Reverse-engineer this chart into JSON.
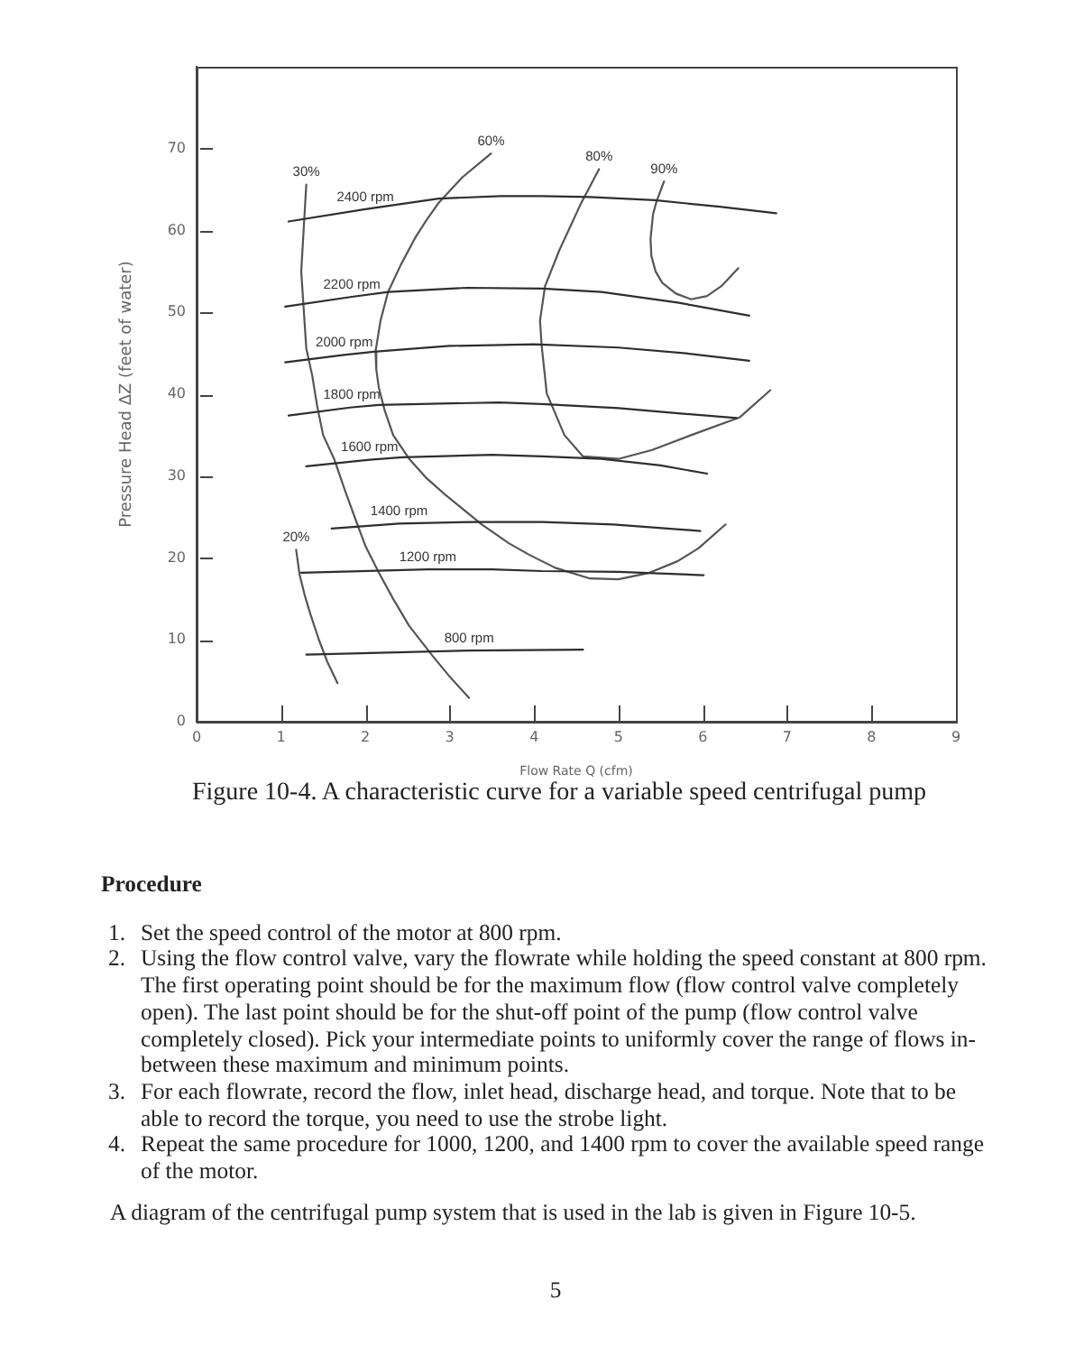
{
  "chart_data": {
    "type": "line",
    "title": "Figure 10-4. A characteristic curve for a variable speed centrifugal pump",
    "xlabel": "Flow Rate Q (cfm)",
    "ylabel": "Pressure Head ΔZ (feet of water)",
    "xlim": [
      0,
      9
    ],
    "xticks": [
      0,
      1,
      2,
      3,
      4,
      5,
      6,
      7,
      8,
      9
    ],
    "ylim": [
      0,
      80
    ],
    "yticks": [
      0,
      10,
      20,
      30,
      40,
      50,
      60,
      70
    ],
    "marker": "none",
    "line_style": "solid",
    "series": [
      {
        "name": "2400 rpm",
        "color": "#2e2e2e",
        "x": [
          1.09,
          2.0,
          2.87,
          3.6,
          4.09,
          4.66,
          5.43,
          6.2,
          6.87
        ],
        "values": [
          61.1,
          62.6,
          63.9,
          64.2,
          64.2,
          64.1,
          63.7,
          62.9,
          62.1
        ]
      },
      {
        "name": "2200 rpm",
        "color": "#2e2e2e",
        "x": [
          1.05,
          1.84,
          2.27,
          3.2,
          4.1,
          4.8,
          5.7,
          6.55
        ],
        "values": [
          50.7,
          51.9,
          52.5,
          53.0,
          52.9,
          52.5,
          51.2,
          49.6
        ]
      },
      {
        "name": "2000 rpm",
        "color": "#2e2e2e",
        "x": [
          1.05,
          1.75,
          2.1,
          3.0,
          4.0,
          5.0,
          5.8,
          6.55
        ],
        "values": [
          43.9,
          44.8,
          45.2,
          45.9,
          46.1,
          45.7,
          45.0,
          44.1
        ]
      },
      {
        "name": "1800 rpm",
        "color": "#2e2e2e",
        "x": [
          1.09,
          1.84,
          2.16,
          3.59,
          4.09,
          5.0,
          5.8,
          6.4
        ],
        "values": [
          37.4,
          38.4,
          38.7,
          39.0,
          38.8,
          38.3,
          37.6,
          37.1
        ]
      },
      {
        "name": "1600 rpm",
        "color": "#2e2e2e",
        "x": [
          1.3,
          2.05,
          2.44,
          3.5,
          4.1,
          4.8,
          5.5,
          6.05
        ],
        "values": [
          31.2,
          32.0,
          32.3,
          32.6,
          32.4,
          32.1,
          31.3,
          30.3
        ]
      },
      {
        "name": "1400 rpm",
        "color": "#2e2e2e",
        "x": [
          1.6,
          2.4,
          3.3,
          4.1,
          4.94,
          5.97
        ],
        "values": [
          23.6,
          24.2,
          24.4,
          24.4,
          24.1,
          23.3
        ]
      },
      {
        "name": "1200 rpm",
        "color": "#2e2e2e",
        "x": [
          1.24,
          2.74,
          3.5,
          4.09,
          5.0,
          6.01
        ],
        "values": [
          18.2,
          18.6,
          18.6,
          18.4,
          18.3,
          17.9
        ]
      },
      {
        "name": "800 rpm",
        "color": "#2e2e2e",
        "x": [
          1.3,
          3.23,
          4.58
        ],
        "values": [
          8.2,
          8.7,
          8.8
        ]
      },
      {
        "name": "20%",
        "color": "#555555",
        "x": [
          1.18,
          1.22,
          1.28,
          1.35,
          1.45,
          1.55,
          1.67
        ],
        "values": [
          21.0,
          18.0,
          15.5,
          13.1,
          10.0,
          7.3,
          4.7
        ]
      },
      {
        "name": "30%",
        "color": "#555555",
        "x": [
          1.3,
          1.24,
          1.3,
          1.37,
          1.43,
          1.5,
          1.63,
          1.75,
          1.88,
          2.0,
          2.16,
          2.33,
          2.52,
          2.8,
          3.0,
          3.23
        ],
        "values": [
          65.6,
          55.0,
          45.6,
          42.3,
          38.5,
          35.0,
          32.1,
          28.5,
          24.8,
          21.5,
          18.2,
          15.0,
          11.7,
          8.0,
          5.5,
          2.9
        ]
      },
      {
        "name": "60%",
        "color": "#555555",
        "x": [
          3.49,
          3.15,
          2.87,
          2.72,
          2.59,
          2.42,
          2.27,
          2.18,
          2.12,
          2.13,
          2.16,
          2.23,
          2.33,
          2.52,
          2.72,
          2.95,
          3.38,
          3.7,
          3.94,
          4.25,
          4.66,
          5.0,
          5.37,
          5.7,
          5.95,
          6.27
        ],
        "values": [
          69.4,
          66.5,
          63.4,
          61.2,
          59.1,
          55.8,
          52.5,
          49.0,
          45.2,
          43.0,
          40.8,
          38.0,
          35.0,
          32.1,
          29.8,
          27.7,
          24.1,
          21.8,
          20.4,
          18.8,
          17.5,
          17.4,
          18.2,
          19.6,
          21.2,
          24.1
        ]
      },
      {
        "name": "80%",
        "color": "#555555",
        "x": [
          4.77,
          4.56,
          4.3,
          4.13,
          4.07,
          4.09,
          4.15,
          4.36,
          4.58,
          5.0,
          5.4,
          5.86,
          6.44,
          6.8
        ],
        "values": [
          67.5,
          63.4,
          57.6,
          53.2,
          49.0,
          45.9,
          40.1,
          35.0,
          32.4,
          32.1,
          33.2,
          35.0,
          37.2,
          40.5
        ]
      },
      {
        "name": "90%",
        "color": "#555555",
        "x": [
          5.54,
          5.45,
          5.41,
          5.38,
          5.39,
          5.44,
          5.52,
          5.68,
          5.86,
          6.05,
          6.22,
          6.42
        ],
        "values": [
          66.0,
          63.5,
          62.0,
          59.0,
          56.9,
          55.0,
          53.6,
          52.3,
          51.6,
          52.0,
          53.2,
          55.4
        ]
      }
    ],
    "annotations": [
      "Procedure",
      "1. Set the speed control of the motor at 800 rpm.",
      "2. Using the flow control valve, vary the flowrate while holding the speed constant at 800 rpm. The first operating point should be for the maximum flow (flow control valve completely open). The last point should be for the shut-off point of the pump (flow control valve completely closed). Pick your intermediate points to uniformly cover the range of flows in-between these maximum and minimum points.",
      "3. For each flowrate, record the flow, inlet head, discharge head, and torque. Note that to be able to record the torque, you need to use the strobe light.",
      "4. Repeat the same procedure for 1000, 1200, and 1400 rpm to cover the available speed range of the motor.",
      "A diagram of the centrifugal pump system that is used in the lab is given in Figure 10-5.",
      "5"
    ]
  }
}
